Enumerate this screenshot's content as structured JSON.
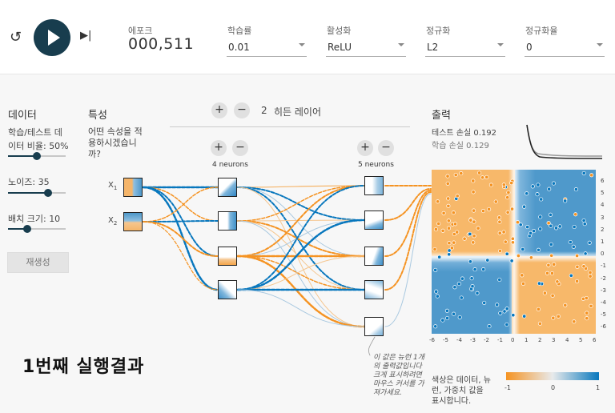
{
  "header": {
    "epoch_label": "에포크",
    "epoch_value": "000,511",
    "learning_rate": {
      "label": "학습률",
      "value": "0.01"
    },
    "activation": {
      "label": "활성화",
      "value": "ReLU"
    },
    "regularization": {
      "label": "정규화",
      "value": "L2"
    },
    "reg_rate": {
      "label": "정규화율",
      "value": "0"
    }
  },
  "data_panel": {
    "title": "데이터",
    "ratio_label_1": "학습/테스트 데",
    "ratio_label_2": "이터 비율:",
    "ratio_value": "50%",
    "noise_label": "노이즈:",
    "noise_value": "35",
    "batch_label": "배치 크기:",
    "batch_value": "10",
    "regenerate": "재생성",
    "train_ratio_fraction": 0.5,
    "noise_fraction": 0.7,
    "batch_fraction": 0.33
  },
  "features": {
    "title": "특성",
    "question_1": "어떤 속성을 적",
    "question_2": "용하시겠습니",
    "question_3": "까?",
    "x1": "X",
    "x1_sub": "1",
    "x2": "X",
    "x2_sub": "2"
  },
  "hidden": {
    "count": "2",
    "label": "히든 레이어",
    "plus": "+",
    "minus": "−",
    "layer1_label": "4 neurons",
    "layer2_label": "5 neurons"
  },
  "output": {
    "title": "출력",
    "test_loss_label": "테스트 손실",
    "test_loss_value": "0.192",
    "train_loss_label": "학습 손실",
    "train_loss_value": "0.129",
    "x_ticks": [
      "-6",
      "-5",
      "-4",
      "-3",
      "-2",
      "-1",
      "0",
      "1",
      "2",
      "3",
      "4",
      "5",
      "6"
    ],
    "y_ticks": [
      "6",
      "5",
      "4",
      "3",
      "2",
      "1",
      "0",
      "-1",
      "-2",
      "-3",
      "-4",
      "-5",
      "-6"
    ],
    "color_note_1": "색상은 데이터, 뉴",
    "color_note_2": "런, 가중치 값을",
    "color_note_3": "표시합니다.",
    "legend_ticks": [
      "-1",
      "0",
      "1"
    ]
  },
  "hint_note": [
    "이 값은 뉴런 1개",
    "의 출력값입니다",
    "크게 표시하려면",
    "마우스 커서를 가",
    "져가세요."
  ],
  "caption": "1번째 실행결과",
  "colors": {
    "orange": "#f59322",
    "blue": "#0877bd",
    "dark": "#183d4e"
  }
}
